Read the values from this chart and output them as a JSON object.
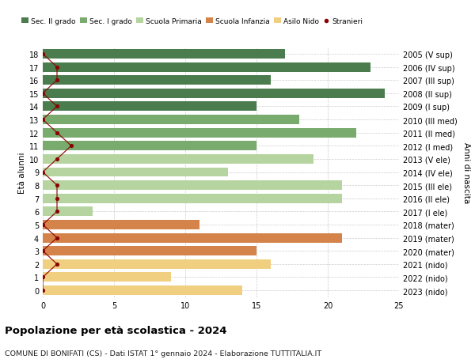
{
  "ages": [
    18,
    17,
    16,
    15,
    14,
    13,
    12,
    11,
    10,
    9,
    8,
    7,
    6,
    5,
    4,
    3,
    2,
    1,
    0
  ],
  "right_labels": [
    "2005 (V sup)",
    "2006 (IV sup)",
    "2007 (III sup)",
    "2008 (II sup)",
    "2009 (I sup)",
    "2010 (III med)",
    "2011 (II med)",
    "2012 (I med)",
    "2013 (V ele)",
    "2014 (IV ele)",
    "2015 (III ele)",
    "2016 (II ele)",
    "2017 (I ele)",
    "2018 (mater)",
    "2019 (mater)",
    "2020 (mater)",
    "2021 (nido)",
    "2022 (nido)",
    "2023 (nido)"
  ],
  "bar_values": [
    17,
    23,
    16,
    24,
    15,
    18,
    22,
    15,
    19,
    13,
    21,
    21,
    3.5,
    11,
    21,
    15,
    16,
    9,
    14
  ],
  "bar_colors": [
    "#4a7c4e",
    "#4a7c4e",
    "#4a7c4e",
    "#4a7c4e",
    "#4a7c4e",
    "#7aab6e",
    "#7aab6e",
    "#7aab6e",
    "#b5d4a0",
    "#b5d4a0",
    "#b5d4a0",
    "#b5d4a0",
    "#b5d4a0",
    "#d4844a",
    "#d4844a",
    "#d4844a",
    "#f0d080",
    "#f0d080",
    "#f0d080"
  ],
  "stranieri_actual": {
    "18": 0,
    "17": 1,
    "16": 1,
    "15": 0,
    "14": 1,
    "13": 0,
    "12": 1,
    "11": 2,
    "10": 1,
    "9": 0,
    "8": 1,
    "7": 1,
    "6": 1,
    "5": 0,
    "4": 1,
    "3": 0,
    "2": 1,
    "1": 0,
    "0": 0
  },
  "title": "Popolazione per età scolastica - 2024",
  "subtitle": "COMUNE DI BONIFATI (CS) - Dati ISTAT 1° gennaio 2024 - Elaborazione TUTTITALIA.IT",
  "ylabel_left": "Età alunni",
  "ylabel_right": "Anni di nascita",
  "xlim": [
    0,
    25
  ],
  "xticks": [
    0,
    5,
    10,
    15,
    20,
    25
  ],
  "legend_labels": [
    "Sec. II grado",
    "Sec. I grado",
    "Scuola Primaria",
    "Scuola Infanzia",
    "Asilo Nido",
    "Stranieri"
  ],
  "legend_colors": [
    "#4a7c4e",
    "#7aab6e",
    "#b5d4a0",
    "#d4844a",
    "#f0d080",
    "#8b0000"
  ],
  "bar_height": 0.72,
  "background_color": "#ffffff",
  "grid_color": "#cccccc",
  "stranieri_color": "#8b0000",
  "line_color": "#8b0000"
}
